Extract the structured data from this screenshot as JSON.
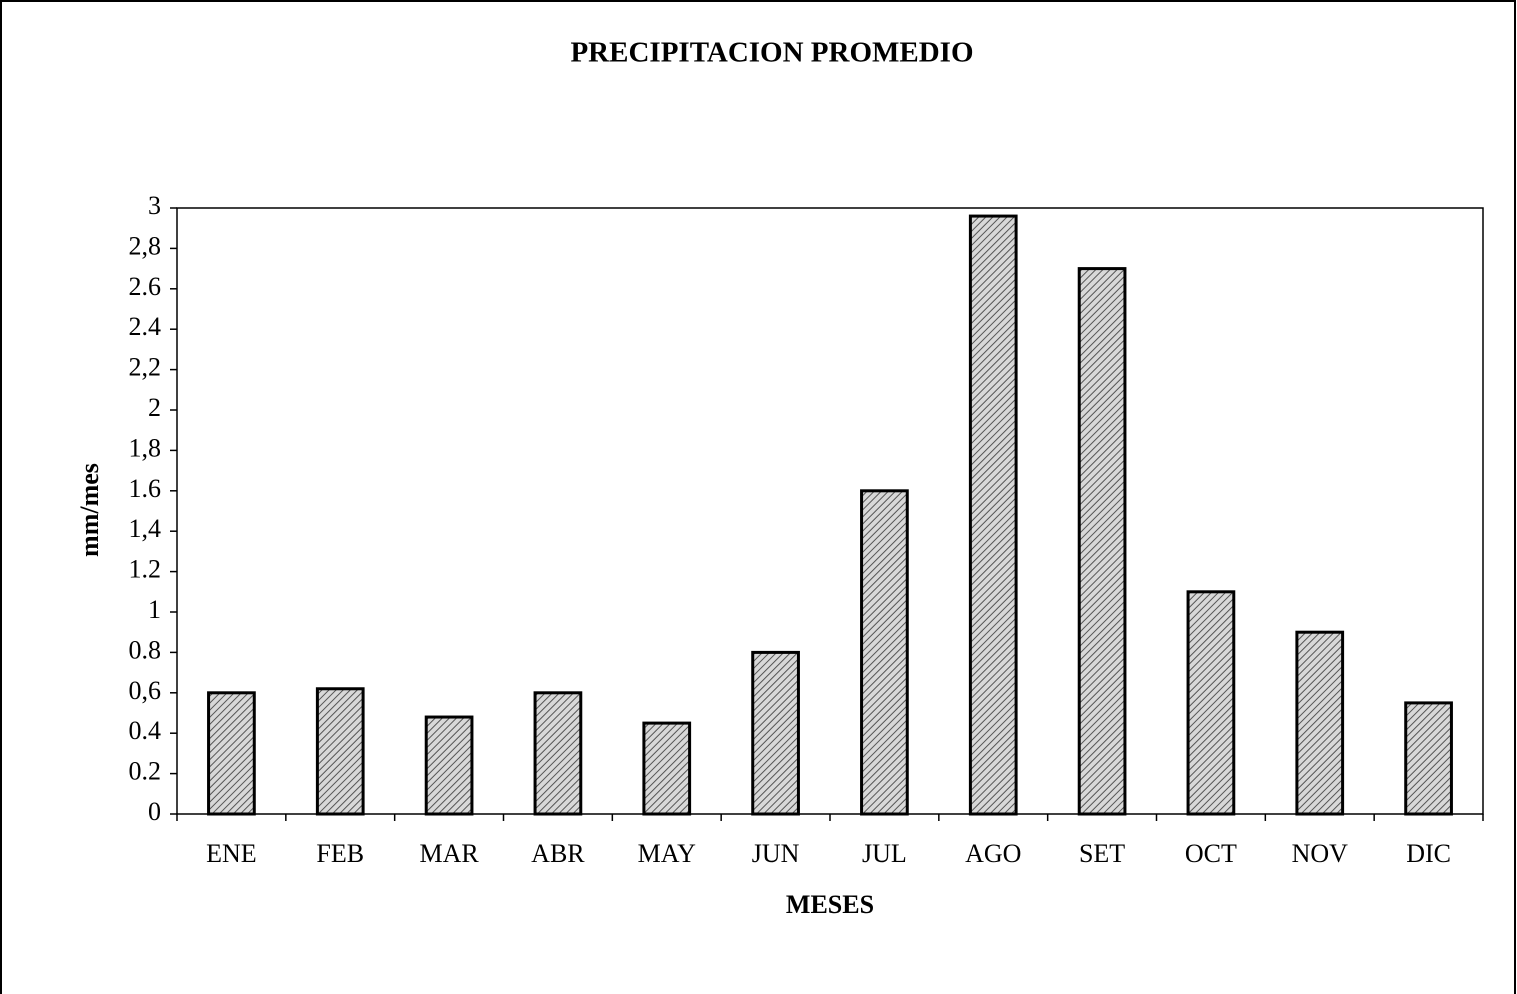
{
  "chart_data": {
    "type": "bar",
    "title": "PRECIPITACION PROMEDIO",
    "x_label": "MESES",
    "y_label": "mm/mes",
    "categories": [
      "ENE",
      "FEB",
      "MAR",
      "ABR",
      "MAY",
      "JUN",
      "JUL",
      "AGO",
      "SET",
      "OCT",
      "NOV",
      "DIC"
    ],
    "values": [
      0.6,
      0.62,
      0.48,
      0.6,
      0.45,
      0.8,
      1.6,
      2.96,
      2.7,
      1.1,
      0.9,
      0.55
    ],
    "color": "#b0b0b0",
    "ylim": [
      0,
      3
    ],
    "yticks": [
      0,
      {
        "value": 0.2,
        "label": "0.2"
      },
      {
        "value": 0.4,
        "label": "0.4"
      },
      {
        "value": 0.6,
        "label": "0,6"
      },
      {
        "value": 0.8,
        "label": "0.8"
      },
      1,
      {
        "value": 1.2,
        "label": "1.2"
      },
      {
        "value": 1.4,
        "label": "1,4"
      },
      {
        "value": 1.6,
        "label": "1.6"
      },
      {
        "value": 1.8,
        "label": "1,8"
      },
      2,
      {
        "value": 2.2,
        "label": "2,2"
      },
      {
        "value": 2.4,
        "label": "2.4"
      },
      {
        "value": 2.6,
        "label": "2.6"
      },
      {
        "value": 2.8,
        "label": "2,8"
      },
      3
    ]
  }
}
